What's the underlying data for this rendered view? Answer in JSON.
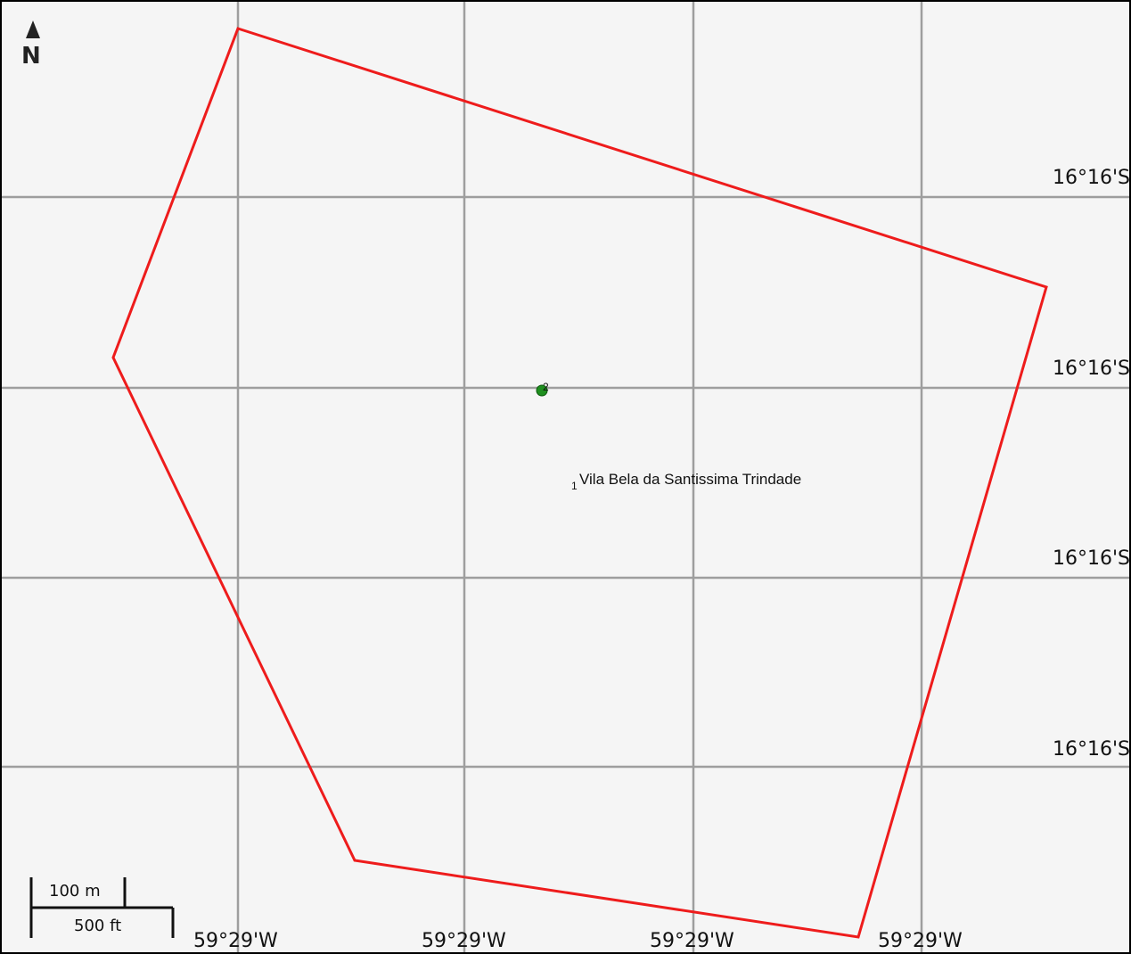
{
  "map": {
    "north_label": "N",
    "latitude_labels": [
      "16°16'S",
      "16°16'S",
      "16°16'S",
      "16°16'S"
    ],
    "longitude_labels": [
      "59°29'W",
      "59°29'W",
      "59°29'W",
      "59°29'W"
    ],
    "place": {
      "marker_number": "1",
      "name": "Vila Bela da Santissima Trindade",
      "point_number": "2"
    },
    "scale_bar": {
      "metric_label": "100 m",
      "imperial_label": "500 ft"
    },
    "colors": {
      "boundary": "#ee1c1c",
      "grid": "#9e9e9e",
      "background": "#f5f5f5",
      "marker": "#1f8f1f"
    }
  }
}
